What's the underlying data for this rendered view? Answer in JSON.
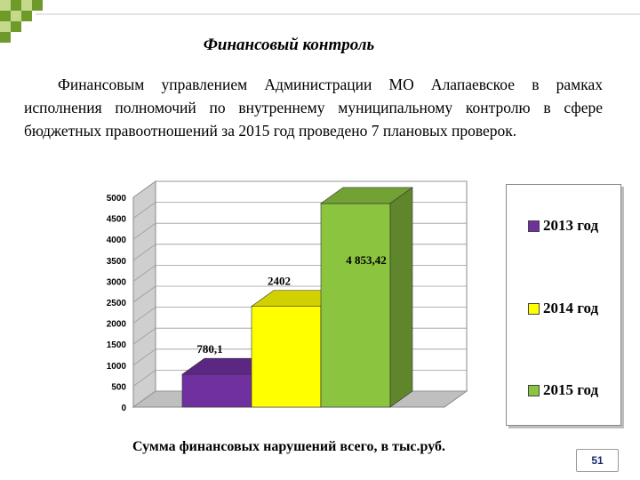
{
  "slide": {
    "title": "Финансовый контроль",
    "paragraph": "Финансовым управлением Администрации МО Алапаевское в рамках исполнения полномочий по внутреннему муниципальному контролю в сфере бюджетных правоотношений за 2015 год проведено 7 плановых проверок.",
    "page_number": "51"
  },
  "colors": {
    "corner_dark": "#6f9a2a",
    "corner_light": "#c5d98a",
    "bar_2013": "#7030a0",
    "bar_2014": "#ffff00",
    "bar_2015": "#8bc53f"
  },
  "chart_data": {
    "type": "bar",
    "xlabel": "Сумма финансовых нарушений всего, в тыс.руб.",
    "ylabel": "",
    "ylim": [
      0,
      5000
    ],
    "yticks": [
      "0",
      "500",
      "1000",
      "1500",
      "2000",
      "2500",
      "3000",
      "3500",
      "4000",
      "4500",
      "5000"
    ],
    "grid": true,
    "legend_placement": "right",
    "categories": [
      "2013 год",
      "2014 год",
      "2015 год"
    ],
    "values": [
      780.1,
      2402,
      4853.42
    ],
    "labels": [
      "780,1",
      "2402",
      "4 853,42"
    ]
  }
}
